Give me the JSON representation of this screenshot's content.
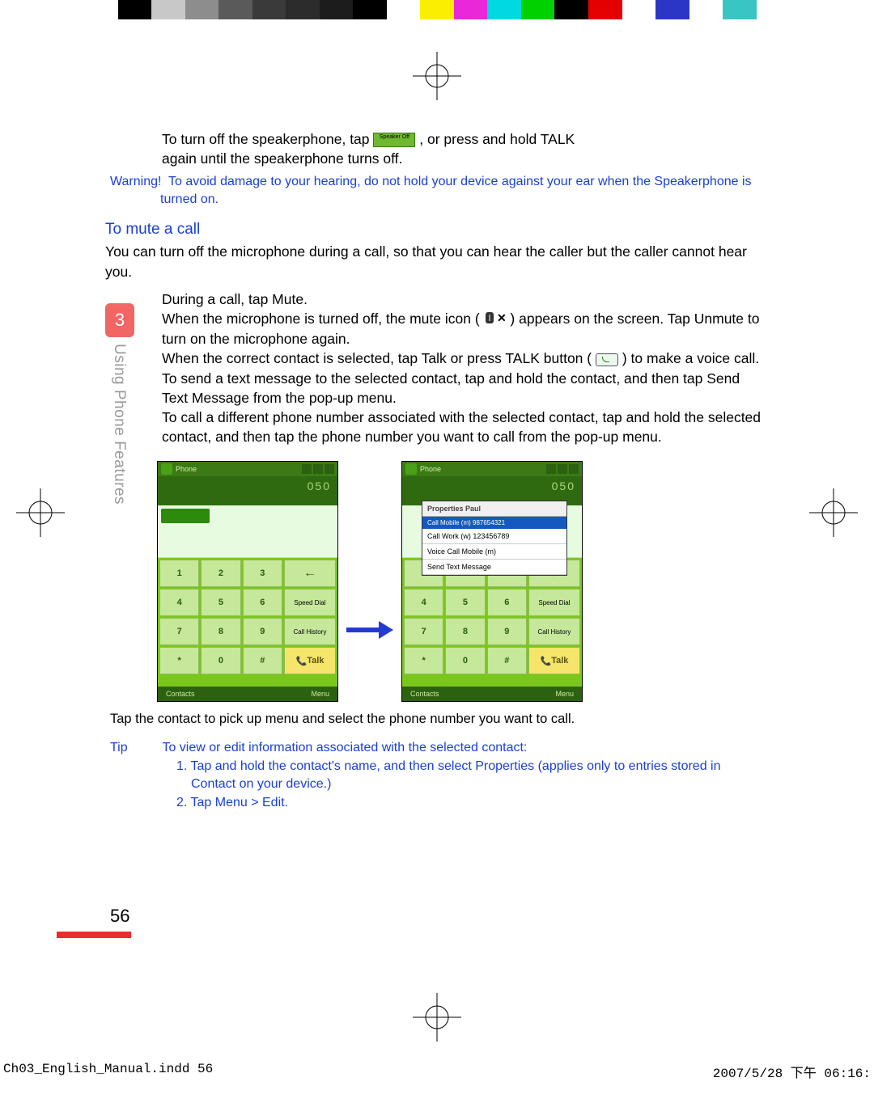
{
  "colorbar_colors": [
    "#ffffff",
    "#000000",
    "#c8c8c8",
    "#8d8d8d",
    "#5a5a5a",
    "#3a3a3a",
    "#2c2c2c",
    "#1c1c1c",
    "#000000",
    "#ffffff",
    "#fbee00",
    "#ea28d9",
    "#00d9e2",
    "#00d200",
    "#000000",
    "#e50000",
    "#ffffff",
    "#2b36c6",
    "#ffffff",
    "#39c6c3",
    "#ffffff"
  ],
  "intro": {
    "line1a": "To turn off the speakerphone, tap ",
    "line1b": ", or press and hold TALK",
    "line2": "again until the speakerphone turns off."
  },
  "warning_label": "Warning!",
  "warning_text": "To avoid damage to your hearing, do not hold your device against your ear when the Speakerphone is turned on.",
  "section_heading": "To mute a call",
  "mute_intro": "You can turn off the microphone during a call, so that you can hear the caller but the caller cannot hear you.",
  "bullet1": "During a call, tap Mute.",
  "bullet2a": "When the microphone is turned off, the mute icon (",
  "bullet2b": ") appears on the screen. Tap Unmute to turn on the microphone again.",
  "bullet3a": "When the correct contact is selected, tap Talk or press TALK button (",
  "bullet3b": ") to make a voice call.",
  "bullet4": "To send a text message to the selected contact, tap and hold the contact, and then tap Send Text Message from the pop-up menu.",
  "bullet5": "To call a different phone number associated with the selected contact, tap and hold the selected contact, and then tap the phone number you want to call from the pop-up menu.",
  "chapter_number": "3",
  "chapter_title": "Using Phone Features",
  "phone": {
    "title": "Phone",
    "display": "050",
    "keys": [
      "1",
      "2",
      "3",
      "",
      "4",
      "5",
      "6",
      "",
      "7",
      "8",
      "9",
      "",
      "",
      "0",
      "",
      ""
    ],
    "side_labels": [
      "Speed Dial",
      "Call History",
      "Talk",
      "Talk"
    ],
    "bottom_left": "Contacts",
    "bottom_right": "Menu"
  },
  "popup": {
    "header": "Properties Paul",
    "sub": "Call Mobile (m) 987654321",
    "items": [
      "Call Work (w) 123456789",
      "Voice Call Mobile (m)",
      "Send Text Message"
    ]
  },
  "caption": "Tap the contact to pick up menu and select the phone number you want to call.",
  "tip_label": "Tip",
  "tip_intro": "To view or edit information associated with the selected contact:",
  "tip1": "Tap and hold the contact's name, and then select Properties (applies only to entries stored in Contact on your device.)",
  "tip2": "Tap Menu > Edit.",
  "page_number": "56",
  "footer_left": "Ch03_English_Manual.indd   56",
  "footer_right": "2007/5/28   下午 06:16:"
}
